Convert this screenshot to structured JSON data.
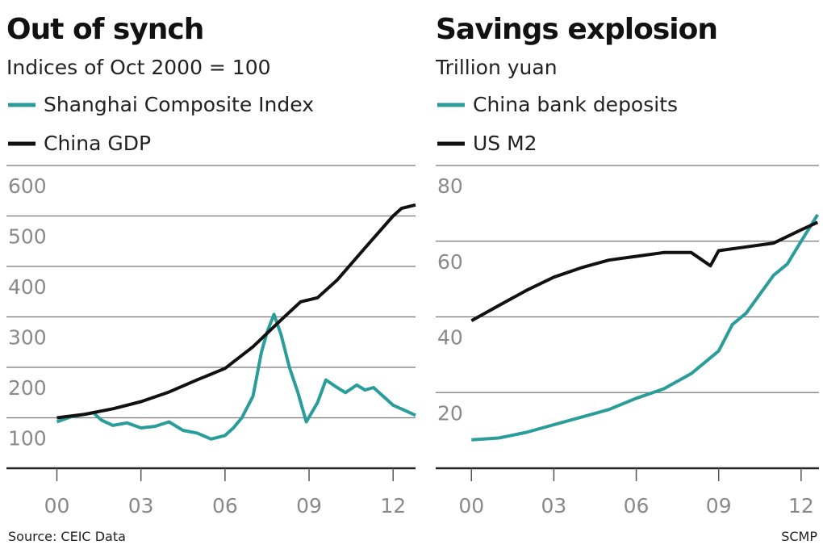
{
  "chart_data": [
    {
      "type": "line",
      "title": "Out of synch",
      "subtitle": "Indices of Oct 2000 = 100",
      "xlim": [
        1998.2,
        2012.8
      ],
      "ylim": [
        0,
        600
      ],
      "xticks": [
        {
          "value": 2000,
          "label": "00"
        },
        {
          "value": 2003,
          "label": "03"
        },
        {
          "value": 2006,
          "label": "06"
        },
        {
          "value": 2009,
          "label": "09"
        },
        {
          "value": 2012,
          "label": "12"
        }
      ],
      "yticks": [
        100,
        200,
        300,
        400,
        500,
        600
      ],
      "grid": true,
      "series": [
        {
          "name": "Shanghai Composite Index",
          "color": "#2a9d9b",
          "x": [
            2000,
            2000.5,
            2001.3,
            2001.6,
            2002,
            2002.5,
            2003,
            2003.5,
            2004,
            2004.5,
            2005,
            2005.5,
            2006,
            2006.3,
            2006.6,
            2007,
            2007.3,
            2007.5,
            2007.75,
            2008,
            2008.3,
            2008.6,
            2008.9,
            2009.3,
            2009.6,
            2010,
            2010.3,
            2010.7,
            2011,
            2011.3,
            2011.7,
            2012,
            2012.4,
            2012.8
          ],
          "values": [
            92,
            102,
            110,
            95,
            85,
            90,
            80,
            83,
            92,
            75,
            70,
            58,
            65,
            80,
            100,
            143,
            230,
            270,
            305,
            265,
            200,
            150,
            92,
            130,
            175,
            160,
            150,
            165,
            155,
            160,
            140,
            125,
            115,
            105
          ]
        },
        {
          "name": "China GDP",
          "color": "#111111",
          "x": [
            2000,
            2001,
            2002,
            2003,
            2004,
            2005,
            2006,
            2007,
            2008,
            2008.7,
            2009.3,
            2010,
            2011,
            2012,
            2012.3,
            2012.8
          ],
          "values": [
            100,
            107,
            118,
            132,
            151,
            175,
            198,
            241,
            294,
            330,
            338,
            373,
            437,
            500,
            515,
            522
          ]
        }
      ],
      "source": "Source: CEIC Data"
    },
    {
      "type": "line",
      "title": "Savings explosion",
      "subtitle": "Trillion yuan",
      "xlim": [
        1998.7,
        2012.65
      ],
      "ylim": [
        0,
        80
      ],
      "xticks": [
        {
          "value": 2000,
          "label": "00"
        },
        {
          "value": 2003,
          "label": "03"
        },
        {
          "value": 2006,
          "label": "06"
        },
        {
          "value": 2009,
          "label": "09"
        },
        {
          "value": 2012,
          "label": "12"
        }
      ],
      "yticks": [
        20,
        40,
        60,
        80
      ],
      "grid": true,
      "series": [
        {
          "name": "China bank deposits",
          "color": "#2a9d9b",
          "x": [
            2000,
            2001,
            2002,
            2003,
            2004,
            2005,
            2006,
            2007,
            2008,
            2009,
            2009.5,
            2010,
            2011,
            2011.5,
            2012,
            2012.6
          ],
          "values": [
            7.5,
            8,
            9.5,
            11.5,
            13.5,
            15.5,
            18.5,
            21,
            25,
            31,
            38,
            41,
            51,
            54,
            60,
            67
          ]
        },
        {
          "name": "US M2",
          "color": "#111111",
          "x": [
            2000,
            2001,
            2002,
            2003,
            2004,
            2005,
            2006,
            2007,
            2008,
            2008.7,
            2009,
            2010,
            2011,
            2012,
            2012.6
          ],
          "values": [
            39,
            43,
            47,
            50.5,
            53,
            55,
            56,
            57,
            57,
            53.5,
            57.5,
            58.5,
            59.5,
            63,
            65
          ]
        }
      ],
      "credit": "SCMP"
    }
  ]
}
